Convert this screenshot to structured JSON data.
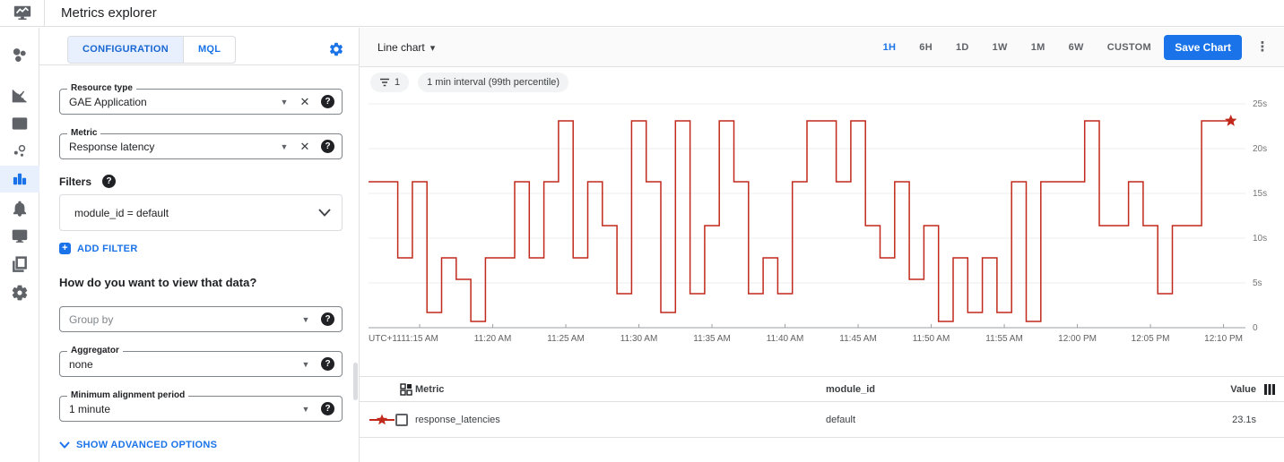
{
  "app": {
    "title": "Metrics explorer"
  },
  "rail": {
    "active": "metrics-explorer",
    "items": [
      "overview",
      "metrics",
      "dashboards",
      "services",
      "metrics-explorer",
      "alerting",
      "uptime-checks",
      "groups",
      "settings"
    ]
  },
  "config": {
    "tabs": {
      "configuration": "CONFIGURATION",
      "mql": "MQL",
      "active": "CONFIGURATION"
    },
    "resource_type": {
      "label": "Resource type",
      "value": "GAE Application"
    },
    "metric": {
      "label": "Metric",
      "value": "Response latency"
    },
    "filters": {
      "label": "Filters",
      "value": "module_id = default",
      "add_label": "ADD FILTER"
    },
    "view_heading": "How do you want to view that data?",
    "group_by": {
      "placeholder": "Group by"
    },
    "aggregator": {
      "label": "Aggregator",
      "value": "none"
    },
    "min_alignment_period": {
      "label": "Minimum alignment period",
      "value": "1 minute"
    },
    "advanced_label": "SHOW ADVANCED OPTIONS"
  },
  "toolbar": {
    "chart_type": "Line chart",
    "ranges": [
      "1H",
      "6H",
      "1D",
      "1W",
      "1M",
      "6W",
      "CUSTOM"
    ],
    "active_range": "1H",
    "save_label": "Save Chart"
  },
  "chips": {
    "filter_count": "1",
    "interval_label": "1 min interval (99th percentile)"
  },
  "chart_data": {
    "type": "line",
    "style": "step",
    "unit": "seconds",
    "utc_label": "UTC+11",
    "x_start_label": "11:12 AM",
    "interval_minutes": 1,
    "ylim": [
      0,
      25
    ],
    "y_tick_values": [
      25,
      20,
      15,
      10,
      5,
      0
    ],
    "y_tick_labels": [
      "25s",
      "20s",
      "15s",
      "10s",
      "5s",
      "0"
    ],
    "x_ticks": [
      {
        "minute": 3,
        "label": "11:15 AM"
      },
      {
        "minute": 8,
        "label": "11:20 AM"
      },
      {
        "minute": 13,
        "label": "11:25 AM"
      },
      {
        "minute": 18,
        "label": "11:30 AM"
      },
      {
        "minute": 23,
        "label": "11:35 AM"
      },
      {
        "minute": 28,
        "label": "11:40 AM"
      },
      {
        "minute": 33,
        "label": "11:45 AM"
      },
      {
        "minute": 38,
        "label": "11:50 AM"
      },
      {
        "minute": 43,
        "label": "11:55 AM"
      },
      {
        "minute": 48,
        "label": "12:00 PM"
      },
      {
        "minute": 53,
        "label": "12:05 PM"
      },
      {
        "minute": 58,
        "label": "12:10 PM"
      }
    ],
    "end_marker": "star",
    "series": [
      {
        "name": "response_latencies",
        "module_id": "default",
        "percentile": "99th",
        "color": "#c0291b",
        "values": [
          16.3,
          16.3,
          7.8,
          16.3,
          1.7,
          7.8,
          5.4,
          0.7,
          7.8,
          7.8,
          16.3,
          7.8,
          16.3,
          23.1,
          7.8,
          16.3,
          11.4,
          3.8,
          23.1,
          16.3,
          1.7,
          23.1,
          3.8,
          11.4,
          23.1,
          16.3,
          3.8,
          7.8,
          3.8,
          16.3,
          23.1,
          23.1,
          16.3,
          23.1,
          11.4,
          7.8,
          16.3,
          5.4,
          11.4,
          0.7,
          7.8,
          1.7,
          7.8,
          1.7,
          16.3,
          0.7,
          16.3,
          16.3,
          16.3,
          23.1,
          11.4,
          11.4,
          16.3,
          11.4,
          3.8,
          11.4,
          11.4,
          23.1,
          23.1
        ]
      }
    ]
  },
  "table": {
    "headers": {
      "metric": "Metric",
      "module_id": "module_id",
      "value": "Value"
    },
    "rows": [
      {
        "metric": "response_latencies",
        "module_id": "default",
        "value": "23.1s"
      }
    ]
  },
  "colors": {
    "accent": "#1a73e8",
    "line": "#c0291b",
    "tab_active_bg": "#e8f0fe",
    "chip_bg": "#f1f3f4"
  }
}
